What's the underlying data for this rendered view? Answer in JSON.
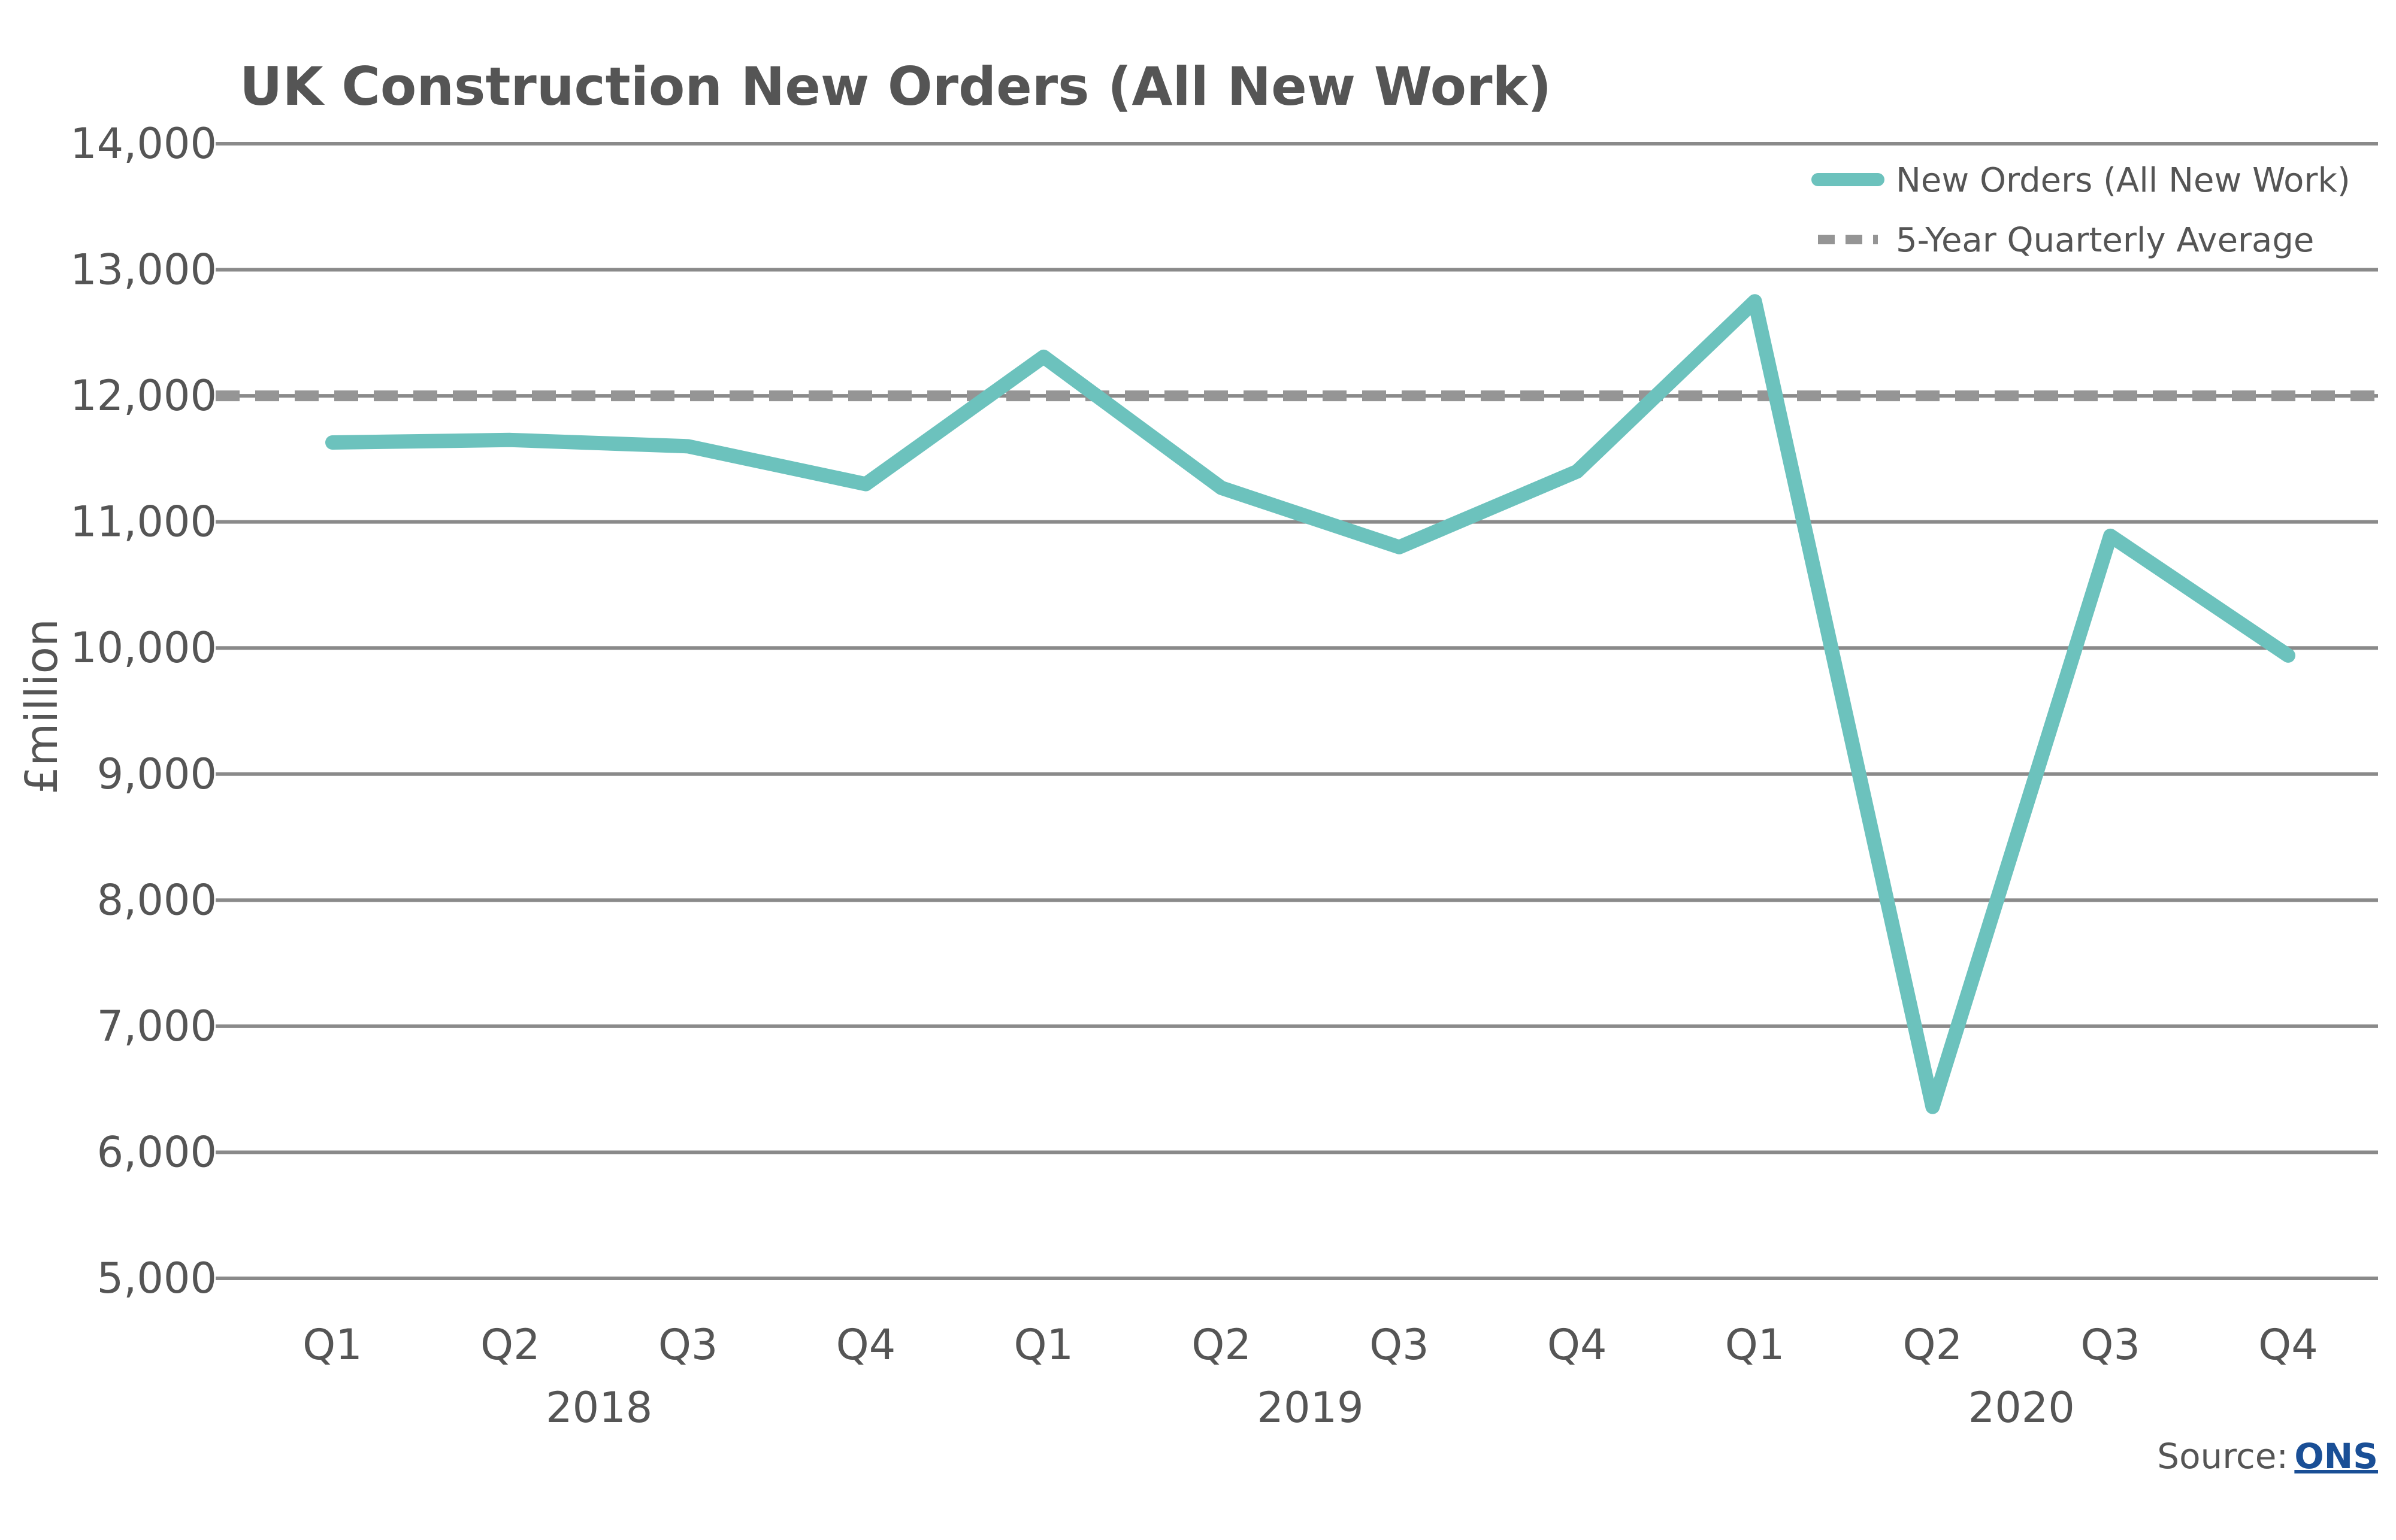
{
  "chart_data": {
    "type": "line",
    "title": "UK Construction New Orders (All New Work)",
    "xlabel": "",
    "ylabel": "£million",
    "ylim": [
      5000,
      14000
    ],
    "y_ticks": [
      "5,000",
      "6,000",
      "7,000",
      "8,000",
      "9,000",
      "10,000",
      "11,000",
      "12,000",
      "13,000",
      "14,000"
    ],
    "categories": [
      "Q1",
      "Q2",
      "Q3",
      "Q4",
      "Q1",
      "Q2",
      "Q3",
      "Q4",
      "Q1",
      "Q2",
      "Q3",
      "Q4"
    ],
    "year_groups": [
      {
        "label": "2018",
        "start": 0,
        "end": 3
      },
      {
        "label": "2019",
        "start": 4,
        "end": 7
      },
      {
        "label": "2020",
        "start": 8,
        "end": 11
      }
    ],
    "grid": true,
    "legend_position": "top-right",
    "series": [
      {
        "name": "New Orders (All New Work)",
        "style": "solid",
        "color": "#6cc2bd",
        "values": [
          11630,
          11650,
          11600,
          11300,
          12310,
          11270,
          10800,
          11400,
          12750,
          6360,
          10890,
          9940
        ]
      },
      {
        "name": "5-Year Quarterly Average",
        "style": "dashed",
        "color": "#959595",
        "values": [
          12000,
          12000,
          12000,
          12000,
          12000,
          12000,
          12000,
          12000,
          12000,
          12000,
          12000,
          12000
        ]
      }
    ]
  },
  "footer": {
    "source_label": "Source:",
    "source_link": "ONS"
  }
}
